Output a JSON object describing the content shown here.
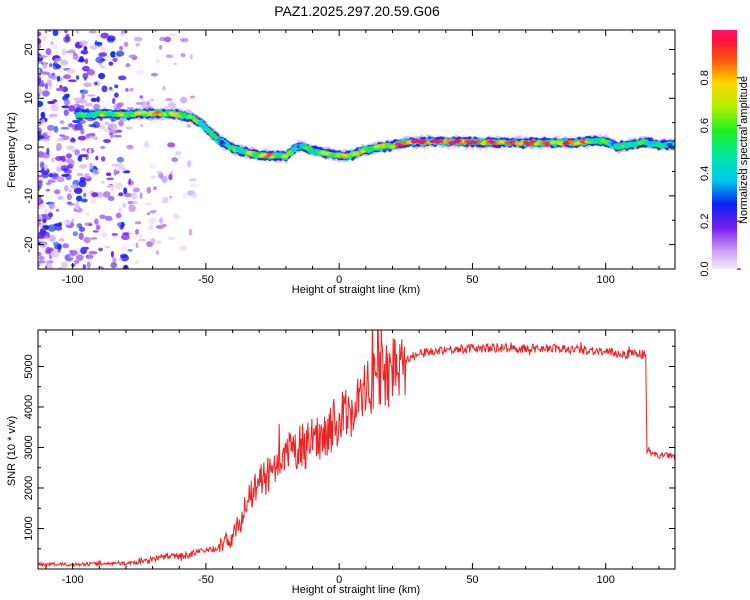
{
  "chart_data": [
    {
      "type": "heatmap",
      "title": "PAZ1.2025.297.20.59.G06",
      "xlabel": "Height of straight line (km)",
      "ylabel": "Frequency (Hz)",
      "xlim": [
        -113,
        126
      ],
      "ylim": [
        -25,
        24
      ],
      "xticks": [
        -100,
        -50,
        0,
        50,
        100
      ],
      "yticks": [
        -20,
        -10,
        0,
        10,
        20
      ],
      "colorbar": {
        "label": "Normalized spectral amplitude",
        "range": [
          0,
          1
        ],
        "ticks": [
          "0.0",
          "0.2",
          "0.4",
          "0.6",
          "0.8"
        ],
        "tick_values": [
          0.0,
          0.2,
          0.4,
          0.6,
          0.8
        ]
      },
      "ridge": {
        "description": "dominant frequency ridge",
        "height_km": [
          -98,
          -90,
          -80,
          -70,
          -62,
          -56,
          -52,
          -48,
          -44,
          -40,
          -35,
          -30,
          -25,
          -20,
          -17,
          -14,
          -10,
          -5,
          0,
          5,
          10,
          15,
          20,
          25,
          30,
          40,
          50,
          60,
          70,
          80,
          90,
          95,
          100,
          105,
          110,
          115,
          120,
          126
        ],
        "frequency_hz": [
          6.5,
          6.8,
          6.7,
          6.9,
          6.8,
          6.2,
          5.0,
          2.8,
          1.0,
          -0.3,
          -1.0,
          -1.6,
          -1.9,
          -1.8,
          -0.5,
          0.3,
          -0.7,
          -1.2,
          -1.8,
          -1.6,
          -0.6,
          0.0,
          0.3,
          0.9,
          1.1,
          1.1,
          1.0,
          0.9,
          0.8,
          0.9,
          0.9,
          1.3,
          1.2,
          0.0,
          0.6,
          1.0,
          0.4,
          0.6
        ],
        "amplitude": [
          0.45,
          0.55,
          0.6,
          0.75,
          0.7,
          0.6,
          0.5,
          0.45,
          0.45,
          0.5,
          0.55,
          0.7,
          0.75,
          0.6,
          0.5,
          0.45,
          0.55,
          0.6,
          0.7,
          0.75,
          0.6,
          0.65,
          0.8,
          0.9,
          0.95,
          0.95,
          0.9,
          0.85,
          0.85,
          0.8,
          0.85,
          0.6,
          0.55,
          0.45,
          0.5,
          0.55,
          0.45,
          0.4
        ]
      }
    },
    {
      "type": "line",
      "xlabel": "Height of straight line (km)",
      "ylabel": "SNR (10 * v/v)",
      "xlim": [
        -113,
        126
      ],
      "ylim": [
        0,
        5900
      ],
      "xticks": [
        -100,
        -50,
        0,
        50,
        100
      ],
      "yticks": [
        1000,
        2000,
        3000,
        4000,
        5000
      ],
      "series": [
        {
          "name": "SNR",
          "color": "#ee2222",
          "x": [
            -113,
            -100,
            -90,
            -80,
            -75,
            -70,
            -65,
            -60,
            -55,
            -50,
            -45,
            -40,
            -37,
            -35,
            -32,
            -30,
            -27,
            -25,
            -22,
            -20,
            -17,
            -15,
            -12,
            -10,
            -7,
            -5,
            -2,
            0,
            3,
            5,
            8,
            10,
            13,
            15,
            18,
            20,
            25,
            30,
            35,
            40,
            45,
            50,
            60,
            70,
            80,
            90,
            95,
            100,
            105,
            108,
            110,
            112,
            114,
            115,
            115.5,
            117,
            120,
            123,
            126
          ],
          "values": [
            120,
            110,
            130,
            140,
            160,
            250,
            320,
            300,
            380,
            450,
            550,
            800,
            1200,
            1600,
            1900,
            2100,
            2300,
            2350,
            2450,
            2800,
            2900,
            3000,
            3050,
            3150,
            3300,
            3400,
            3550,
            3700,
            3800,
            4000,
            4200,
            4400,
            4600,
            4750,
            4900,
            5000,
            5200,
            5300,
            5380,
            5420,
            5430,
            5450,
            5450,
            5450,
            5440,
            5420,
            5400,
            5350,
            5320,
            5300,
            5350,
            5320,
            5300,
            5250,
            2900,
            2850,
            2800,
            2800,
            2800
          ]
        }
      ]
    }
  ]
}
